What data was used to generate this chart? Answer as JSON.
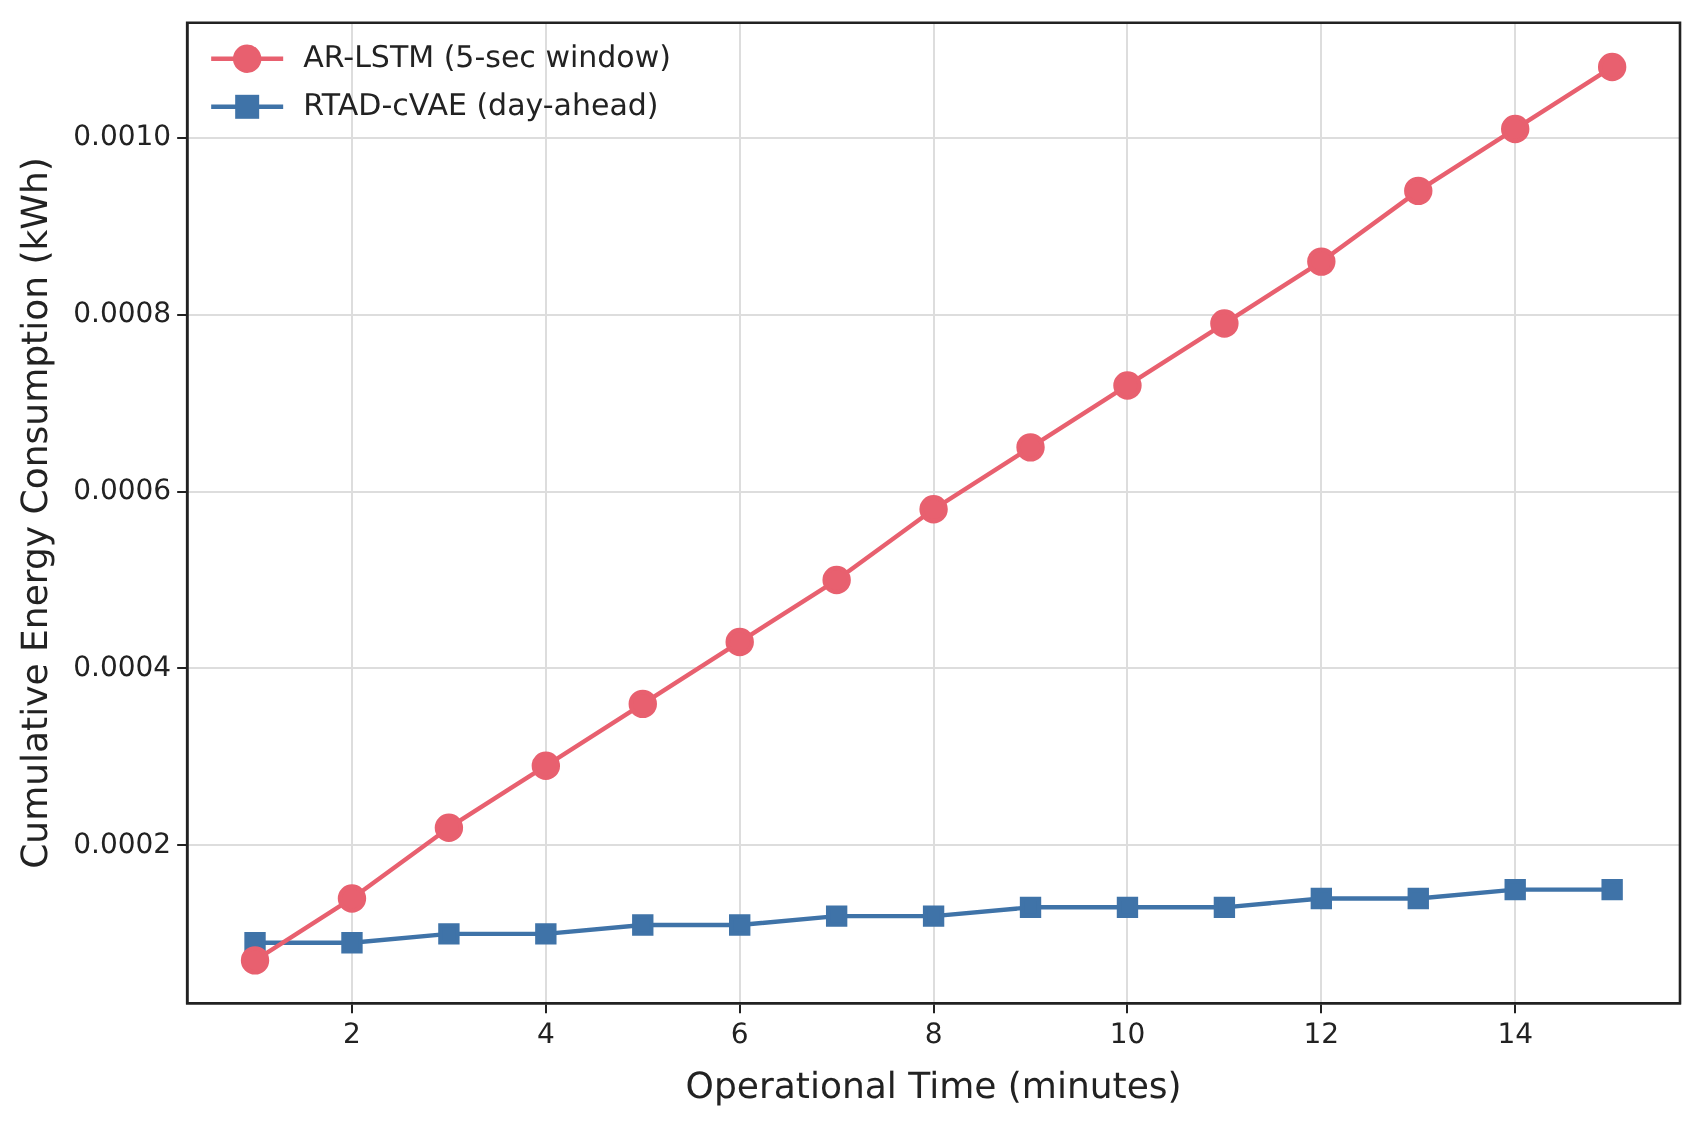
{
  "chart_data": {
    "type": "line",
    "xlabel": "Operational Time (minutes)",
    "ylabel": "Cumulative Energy Consumption (kWh)",
    "x": [
      1,
      2,
      3,
      4,
      5,
      6,
      7,
      8,
      9,
      10,
      11,
      12,
      13,
      14,
      15
    ],
    "series": [
      {
        "name": "AR-LSTM (5-sec window)",
        "color": "#e8606f",
        "marker": "circle",
        "values": [
          7e-05,
          0.00014,
          0.00022,
          0.00029,
          0.00036,
          0.00043,
          0.0005,
          0.00058,
          0.00065,
          0.00072,
          0.00079,
          0.00086,
          0.00094,
          0.00101,
          0.00108
        ]
      },
      {
        "name": "RTAD-cVAE (day-ahead)",
        "color": "#3f73a8",
        "marker": "square",
        "values": [
          9e-05,
          9e-05,
          0.0001,
          0.0001,
          0.00011,
          0.00011,
          0.00012,
          0.00012,
          0.00013,
          0.00013,
          0.00013,
          0.00014,
          0.00014,
          0.00015,
          0.00015
        ]
      }
    ],
    "xlim": [
      0.3,
      15.7
    ],
    "xticks": [
      2,
      4,
      6,
      8,
      10,
      12,
      14
    ],
    "ylim": [
      2.16e-05,
      0.00113
    ],
    "yticks": [
      {
        "value": 0.0002,
        "label": "0.0002"
      },
      {
        "value": 0.0004,
        "label": "0.0004"
      },
      {
        "value": 0.0006,
        "label": "0.0006"
      },
      {
        "value": 0.0008,
        "label": "0.0008"
      },
      {
        "value": 0.001,
        "label": "0.0010"
      }
    ],
    "grid": true,
    "legend": "top left",
    "line_style": "solid"
  }
}
